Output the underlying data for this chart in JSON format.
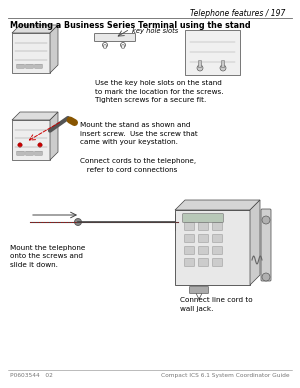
{
  "page_title": "Telephone features / 197",
  "section_title": "Mounting a Business Series Terminal using the stand",
  "footer_left": "P0603544   02",
  "footer_right": "Compact ICS 6.1 System Coordinator Guide",
  "bg_color": "#ffffff",
  "text_color": "#000000",
  "block1_label": "key hole slots",
  "block1_text": "Use the key hole slots on the stand\nto mark the location for the screws.\nTighten screws for a secure fit.",
  "block2_text1": "Mount the stand as shown and\ninsert screw.  Use the screw that\ncame with your keystation.",
  "block2_text2": "Connect cords to the telephone,\n   refer to cord connections",
  "block3_text_left": "Mount the telephone\nonto the screws and\nslide it down.",
  "block3_text_right": "Connect line cord to\nwall jack.",
  "title_fontsize": 5.5,
  "section_fontsize": 5.8,
  "body_fontsize": 5.2,
  "footer_fontsize": 4.2,
  "line_color": "#444444",
  "red_color": "#cc0000"
}
